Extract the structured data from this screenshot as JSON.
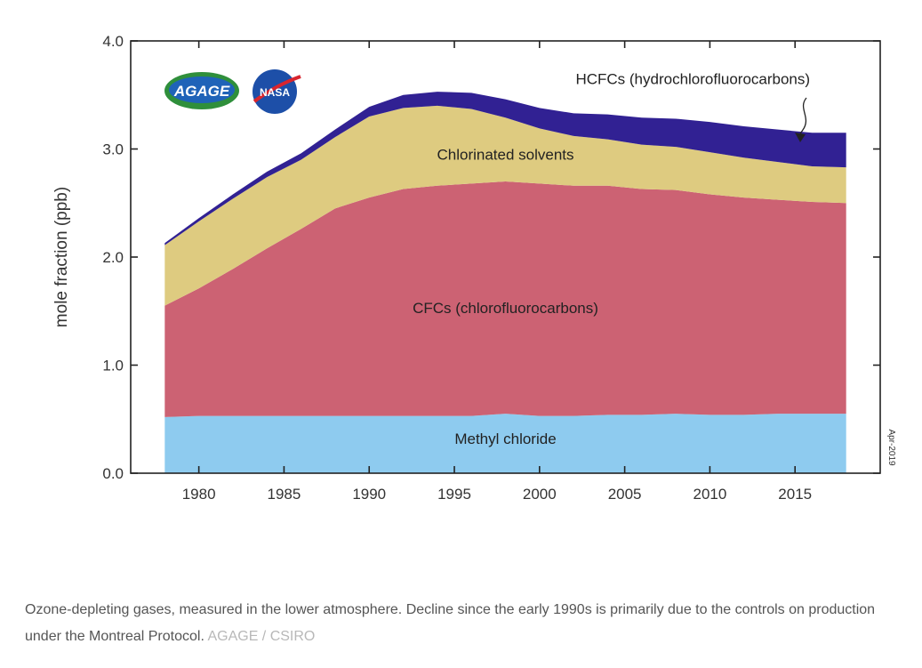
{
  "chart_data": {
    "type": "area",
    "stacked": true,
    "ylabel": "mole fraction (ppb)",
    "xlabel": "",
    "ylim": [
      0,
      4
    ],
    "xlim": [
      1976,
      2020
    ],
    "y_ticks": [
      0,
      1,
      2,
      3,
      4
    ],
    "y_tick_labels": [
      "0.0",
      "1.0",
      "2.0",
      "3.0",
      "4.0"
    ],
    "x_ticks": [
      1980,
      1985,
      1990,
      1995,
      2000,
      2005,
      2010,
      2015
    ],
    "x_tick_labels": [
      "1980",
      "1985",
      "1990",
      "1995",
      "2000",
      "2005",
      "2010",
      "2015"
    ],
    "grid": false,
    "legend": "none",
    "date_stamp": "Apr-2019",
    "logos": [
      "AGAGE",
      "NASA"
    ],
    "x": [
      1978,
      1980,
      1982,
      1984,
      1986,
      1988,
      1990,
      1992,
      1994,
      1996,
      1998,
      2000,
      2002,
      2004,
      2006,
      2008,
      2010,
      2012,
      2014,
      2016,
      2018
    ],
    "series": [
      {
        "name": "Methyl chloride",
        "color": "#8ecbef",
        "values": [
          0.52,
          0.53,
          0.53,
          0.53,
          0.53,
          0.53,
          0.53,
          0.53,
          0.53,
          0.53,
          0.55,
          0.53,
          0.53,
          0.54,
          0.54,
          0.55,
          0.54,
          0.54,
          0.55,
          0.55,
          0.55
        ]
      },
      {
        "name": "CFCs (chlorofluorocarbons)",
        "color": "#cc6273",
        "values": [
          1.03,
          1.18,
          1.36,
          1.55,
          1.73,
          1.92,
          2.02,
          2.1,
          2.13,
          2.15,
          2.15,
          2.15,
          2.13,
          2.12,
          2.09,
          2.07,
          2.04,
          2.01,
          1.98,
          1.96,
          1.95
        ]
      },
      {
        "name": "Chlorinated solvents",
        "color": "#decb80",
        "values": [
          0.56,
          0.62,
          0.65,
          0.66,
          0.64,
          0.66,
          0.75,
          0.75,
          0.74,
          0.69,
          0.59,
          0.51,
          0.46,
          0.43,
          0.41,
          0.4,
          0.39,
          0.37,
          0.35,
          0.33,
          0.33
        ]
      },
      {
        "name": "HCFCs (hydrochlorofluorocarbons)",
        "color": "#312193",
        "values": [
          0.02,
          0.03,
          0.04,
          0.05,
          0.06,
          0.07,
          0.09,
          0.12,
          0.13,
          0.15,
          0.17,
          0.19,
          0.21,
          0.23,
          0.25,
          0.26,
          0.28,
          0.29,
          0.3,
          0.31,
          0.32
        ]
      }
    ],
    "annotations": [
      {
        "text": "Methyl chloride",
        "x": 1998,
        "y": 0.27
      },
      {
        "text": "CFCs (chlorofluorocarbons)",
        "x": 1998,
        "y": 1.48
      },
      {
        "text": "Chlorinated solvents",
        "x": 1998,
        "y": 2.9
      },
      {
        "text": "HCFCs (hydrochlorofluorocarbons)",
        "x": 2009,
        "y": 3.6
      }
    ]
  },
  "caption": {
    "text": "Ozone-depleting gases, measured in the lower atmosphere. Decline since the early 1990s is primarily due to the controls on production under the Montreal Protocol.",
    "source": "AGAGE / CSIRO"
  }
}
